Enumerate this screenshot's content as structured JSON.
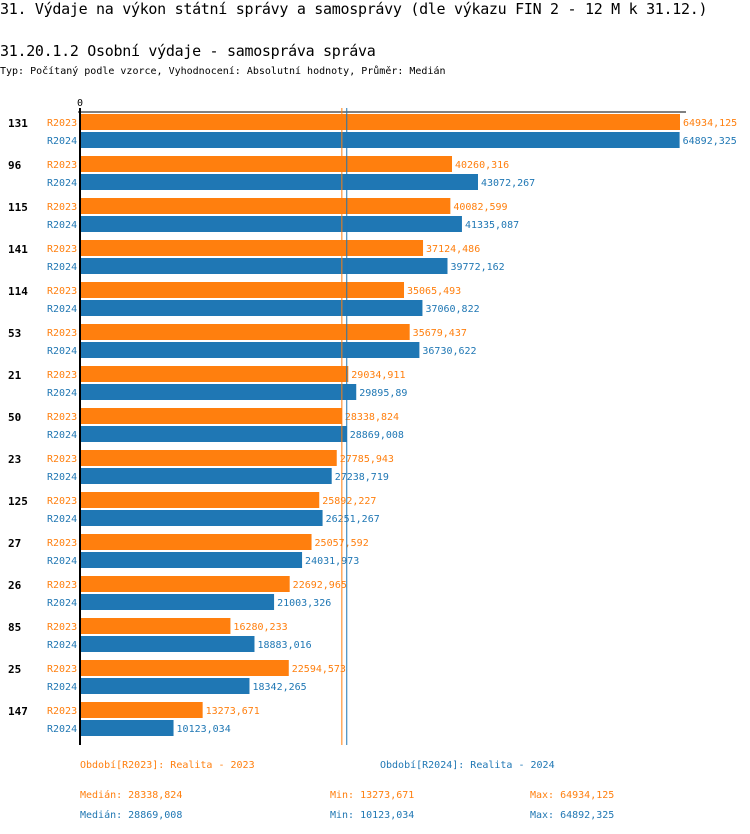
{
  "header": {
    "title": "31. Výdaje na výkon státní správy a samosprávy (dle výkazu FIN 2 - 12 M k 31.12.)",
    "subtitle": "31.20.1.2 Osobní výdaje - samospráva správa",
    "type_line": "Typ: Počítaný podle vzorce, Vyhodnocení: Absolutní hodnoty, Průměr: Medián"
  },
  "colors": {
    "R2023": "#ff7f0e",
    "R2024": "#1f77b4",
    "axis": "#000000"
  },
  "chart_data": {
    "type": "bar",
    "orientation": "horizontal",
    "title": "31.20.1.2 Osobní výdaje - samospráva správa",
    "xlabel": "",
    "ylabel": "",
    "x_axis_tick_labels": [
      "0"
    ],
    "xlim": [
      0,
      66500
    ],
    "grid": false,
    "categories": [
      "131",
      "96",
      "115",
      "141",
      "114",
      "53",
      "21",
      "50",
      "23",
      "125",
      "27",
      "26",
      "85",
      "25",
      "147"
    ],
    "series": [
      {
        "name": "R2023",
        "values": [
          64934.125,
          40260.316,
          40082.599,
          37124.486,
          35065.493,
          35679.437,
          29034.911,
          28338.824,
          27785.943,
          25892.227,
          25057.592,
          22692.965,
          16280.233,
          22594.573,
          13273.671
        ],
        "labels": [
          "64934,125",
          "40260,316",
          "40082,599",
          "37124,486",
          "35065,493",
          "35679,437",
          "29034,911",
          "28338,824",
          "27785,943",
          "25892,227",
          "25057,592",
          "22692,965",
          "16280,233",
          "22594,573",
          "13273,671"
        ],
        "median": 28338.824
      },
      {
        "name": "R2024",
        "values": [
          64892.325,
          43072.267,
          41335.087,
          39772.162,
          37060.822,
          36730.622,
          29895.89,
          28869.008,
          27238.719,
          26251.267,
          24031.973,
          21003.326,
          18883.016,
          18342.265,
          10123.034
        ],
        "labels": [
          "64892,325",
          "43072,267",
          "41335,087",
          "39772,162",
          "37060,822",
          "36730,622",
          "29895,89",
          "28869,008",
          "27238,719",
          "26251,267",
          "24031,973",
          "21003,326",
          "18883,016",
          "18342,265",
          "10123,034"
        ],
        "median": 28869.008
      }
    ],
    "reference_lines": [
      {
        "series": "R2023",
        "kind": "median",
        "value": 28338.824
      },
      {
        "series": "R2024",
        "kind": "median",
        "value": 28869.008
      }
    ],
    "legend_position": "bottom"
  },
  "legend": {
    "R2023": {
      "period": "Období[R2023]: Realita - 2023",
      "median": "Medián: 28338,824",
      "min": "Min: 13273,671",
      "max": "Max: 64934,125"
    },
    "R2024": {
      "period": "Období[R2024]: Realita - 2024",
      "median": "Medián: 28869,008",
      "min": "Min: 10123,034",
      "max": "Max: 64892,325"
    }
  }
}
